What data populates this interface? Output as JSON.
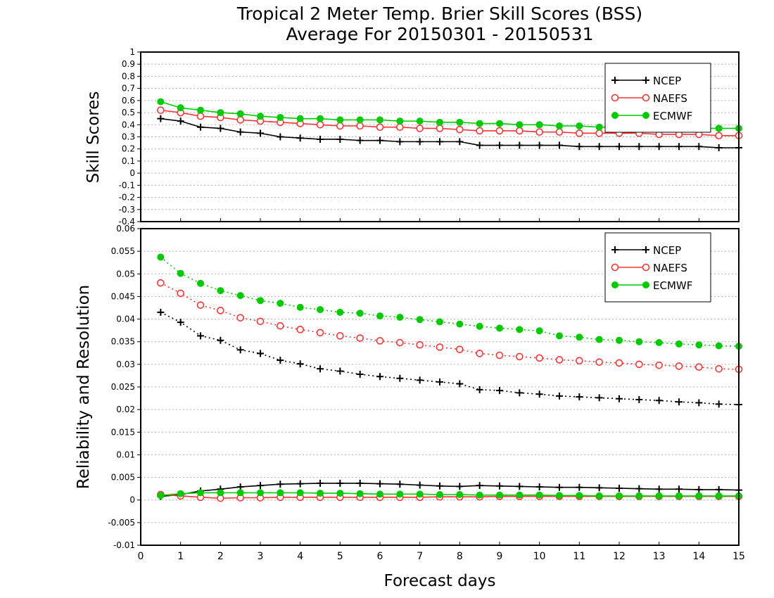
{
  "title": {
    "line1": "Tropical 2 Meter Temp. Brier Skill Scores (BSS)",
    "line2": "Average For 20150301 - 20150531"
  },
  "chart_data": [
    {
      "type": "line",
      "ylabel": "Skill Scores",
      "xlabel": "",
      "xlim": [
        0,
        15
      ],
      "ylim": [
        -0.4,
        1
      ],
      "grid": true,
      "legend_position": "top-right",
      "yticks": [
        "-0.4",
        "-0.3",
        "-0.2",
        "-0.1",
        "0",
        "0.1",
        "0.2",
        "0.3",
        "0.4",
        "0.5",
        "0.6",
        "0.7",
        "0.8",
        "0.9",
        "1"
      ],
      "x": [
        0.5,
        1,
        1.5,
        2,
        2.5,
        3,
        3.5,
        4,
        4.5,
        5,
        5.5,
        6,
        6.5,
        7,
        7.5,
        8,
        8.5,
        9,
        9.5,
        10,
        10.5,
        11,
        11.5,
        12,
        12.5,
        13,
        13.5,
        14,
        14.5,
        15
      ],
      "series": [
        {
          "name": "NCEP",
          "color": "#000000",
          "marker": "plus",
          "line": "solid",
          "values": [
            0.45,
            0.43,
            0.38,
            0.37,
            0.34,
            0.33,
            0.3,
            0.29,
            0.28,
            0.28,
            0.27,
            0.27,
            0.26,
            0.26,
            0.26,
            0.26,
            0.23,
            0.23,
            0.23,
            0.23,
            0.23,
            0.22,
            0.22,
            0.22,
            0.22,
            0.22,
            0.22,
            0.22,
            0.21,
            0.21
          ]
        },
        {
          "name": "NAEFS",
          "color": "#ff3333",
          "marker": "open-circle",
          "line": "solid",
          "values": [
            0.52,
            0.5,
            0.47,
            0.46,
            0.44,
            0.43,
            0.42,
            0.41,
            0.4,
            0.39,
            0.39,
            0.38,
            0.38,
            0.37,
            0.37,
            0.36,
            0.35,
            0.35,
            0.35,
            0.34,
            0.34,
            0.33,
            0.33,
            0.33,
            0.33,
            0.32,
            0.32,
            0.32,
            0.31,
            0.31
          ]
        },
        {
          "name": "ECMWF",
          "color": "#00cc00",
          "marker": "filled-circle",
          "line": "solid",
          "values": [
            0.59,
            0.54,
            0.52,
            0.5,
            0.49,
            0.47,
            0.46,
            0.45,
            0.45,
            0.44,
            0.44,
            0.44,
            0.43,
            0.43,
            0.42,
            0.42,
            0.41,
            0.41,
            0.4,
            0.4,
            0.39,
            0.39,
            0.38,
            0.38,
            0.38,
            0.38,
            0.37,
            0.37,
            0.37,
            0.37
          ]
        }
      ]
    },
    {
      "type": "line",
      "ylabel": "Reliability and Resolution",
      "xlabel": "Forecast days",
      "xlim": [
        0,
        15
      ],
      "ylim": [
        -0.01,
        0.06
      ],
      "grid": true,
      "legend_position": "top-right",
      "yticks": [
        "-0.01",
        "-0.005",
        "0",
        "0.005",
        "0.01",
        "0.015",
        "0.02",
        "0.025",
        "0.03",
        "0.035",
        "0.04",
        "0.045",
        "0.05",
        "0.055",
        "0.06"
      ],
      "xticks": [
        "0",
        "1",
        "2",
        "3",
        "4",
        "5",
        "6",
        "7",
        "8",
        "9",
        "10",
        "11",
        "12",
        "13",
        "14",
        "15"
      ],
      "x": [
        0.5,
        1,
        1.5,
        2,
        2.5,
        3,
        3.5,
        4,
        4.5,
        5,
        5.5,
        6,
        6.5,
        7,
        7.5,
        8,
        8.5,
        9,
        9.5,
        10,
        10.5,
        11,
        11.5,
        12,
        12.5,
        13,
        13.5,
        14,
        14.5,
        15
      ],
      "series": [
        {
          "name": "NCEP",
          "color": "#000000",
          "marker": "plus",
          "line": "dotted",
          "kind": "resolution",
          "values": [
            0.0415,
            0.0393,
            0.0363,
            0.0353,
            0.0332,
            0.0324,
            0.0309,
            0.0301,
            0.029,
            0.0285,
            0.0278,
            0.0273,
            0.0269,
            0.0265,
            0.0261,
            0.0257,
            0.0244,
            0.0242,
            0.0237,
            0.0234,
            0.023,
            0.0228,
            0.0226,
            0.0224,
            0.0222,
            0.022,
            0.0217,
            0.0215,
            0.0212,
            0.0211
          ]
        },
        {
          "name": "NAEFS",
          "color": "#ff3333",
          "marker": "open-circle",
          "line": "dotted",
          "kind": "resolution",
          "values": [
            0.048,
            0.0457,
            0.0431,
            0.0419,
            0.0403,
            0.0395,
            0.0385,
            0.0377,
            0.037,
            0.0363,
            0.0358,
            0.0352,
            0.0348,
            0.0343,
            0.0338,
            0.0333,
            0.0324,
            0.032,
            0.0317,
            0.0314,
            0.031,
            0.0308,
            0.0305,
            0.0303,
            0.03,
            0.0298,
            0.0296,
            0.0294,
            0.029,
            0.0289
          ]
        },
        {
          "name": "ECMWF",
          "color": "#00cc00",
          "marker": "filled-circle",
          "line": "dotted",
          "kind": "resolution",
          "values": [
            0.0537,
            0.0501,
            0.0479,
            0.0463,
            0.0452,
            0.0441,
            0.0435,
            0.0426,
            0.0421,
            0.0415,
            0.0413,
            0.0407,
            0.0404,
            0.0399,
            0.0394,
            0.0389,
            0.0384,
            0.038,
            0.0377,
            0.0374,
            0.0363,
            0.036,
            0.0355,
            0.0353,
            0.035,
            0.0348,
            0.0345,
            0.0343,
            0.0341,
            0.034
          ]
        },
        {
          "name": "NCEP",
          "color": "#000000",
          "marker": "plus",
          "line": "solid",
          "kind": "reliability",
          "values": [
            0.0008,
            0.0012,
            0.002,
            0.0024,
            0.0029,
            0.0032,
            0.0035,
            0.0036,
            0.0037,
            0.0037,
            0.0037,
            0.0036,
            0.0035,
            0.0033,
            0.0031,
            0.003,
            0.0032,
            0.0031,
            0.003,
            0.0029,
            0.0028,
            0.0028,
            0.0027,
            0.0026,
            0.0025,
            0.0024,
            0.0024,
            0.0023,
            0.0023,
            0.0022
          ]
        },
        {
          "name": "NAEFS",
          "color": "#ff3333",
          "marker": "open-circle",
          "line": "solid",
          "kind": "reliability",
          "values": [
            0.0012,
            0.0009,
            0.0006,
            0.0004,
            0.0005,
            0.0005,
            0.0006,
            0.0006,
            0.0006,
            0.0006,
            0.0006,
            0.0006,
            0.0006,
            0.0006,
            0.0007,
            0.0007,
            0.0007,
            0.0008,
            0.0008,
            0.0008,
            0.0008,
            0.0008,
            0.0008,
            0.0008,
            0.0008,
            0.0008,
            0.0008,
            0.0008,
            0.0008,
            0.0008
          ]
        },
        {
          "name": "ECMWF",
          "color": "#00cc00",
          "marker": "filled-circle",
          "line": "solid",
          "kind": "reliability",
          "values": [
            0.001,
            0.0014,
            0.0016,
            0.0016,
            0.0016,
            0.0016,
            0.0016,
            0.0016,
            0.0015,
            0.0015,
            0.0014,
            0.0013,
            0.0013,
            0.0013,
            0.0012,
            0.0012,
            0.0011,
            0.0011,
            0.0011,
            0.0011,
            0.001,
            0.001,
            0.0009,
            0.0009,
            0.0009,
            0.0009,
            0.0009,
            0.0009,
            0.0009,
            0.0009
          ]
        }
      ]
    }
  ],
  "legend": [
    {
      "label": "NCEP",
      "color": "#000000",
      "marker": "plus"
    },
    {
      "label": "NAEFS",
      "color": "#ff3333",
      "marker": "open-circle"
    },
    {
      "label": "ECMWF",
      "color": "#00cc00",
      "marker": "filled-circle"
    }
  ]
}
